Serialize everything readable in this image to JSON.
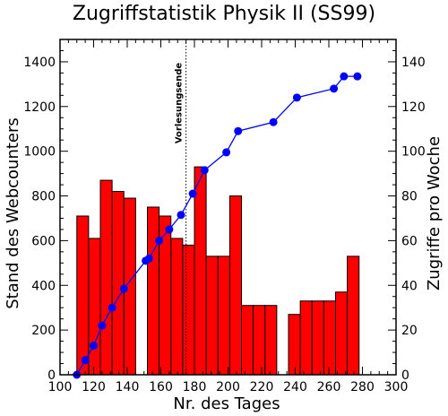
{
  "chart_data": {
    "type": "bar",
    "title": "Zugriffstatistik Physik II (SS99)",
    "xlabel": "Nr. des Tages",
    "ylabel": "Stand des Webcounters",
    "y2label": "Zugriffe pro Woche",
    "xlim": [
      100,
      300
    ],
    "ylim": [
      0,
      1500
    ],
    "y2lim": [
      0,
      150
    ],
    "xticks": [
      100,
      120,
      140,
      160,
      180,
      200,
      220,
      240,
      260,
      280,
      300
    ],
    "yticks": [
      0,
      200,
      400,
      600,
      800,
      1000,
      1200,
      1400
    ],
    "y2ticks": [
      0,
      20,
      40,
      60,
      80,
      100,
      120,
      140
    ],
    "annotation": {
      "text": "Vorlesungsende",
      "x": 175
    },
    "bars": {
      "axis": "right",
      "color": "#ff0000",
      "width": 7,
      "x_start": [
        110,
        117,
        124,
        131,
        138,
        152,
        159,
        166,
        173,
        180,
        187,
        194,
        201,
        208,
        215,
        222,
        236,
        243,
        250,
        257,
        264,
        271
      ],
      "values": [
        71,
        61,
        87,
        82,
        79,
        75,
        71,
        61,
        58,
        93,
        53,
        53,
        80,
        31,
        31,
        31,
        27,
        33,
        33,
        33,
        37,
        53
      ]
    },
    "line": {
      "axis": "left",
      "color": "#0000ff",
      "x": [
        110,
        115,
        120,
        125,
        131,
        138,
        151,
        153,
        159,
        165,
        172,
        179,
        186,
        199,
        206,
        227,
        241,
        263,
        269,
        277
      ],
      "y": [
        0,
        65,
        130,
        220,
        300,
        385,
        510,
        520,
        600,
        650,
        715,
        810,
        915,
        995,
        1090,
        1130,
        1240,
        1280,
        1335,
        1335
      ]
    }
  }
}
